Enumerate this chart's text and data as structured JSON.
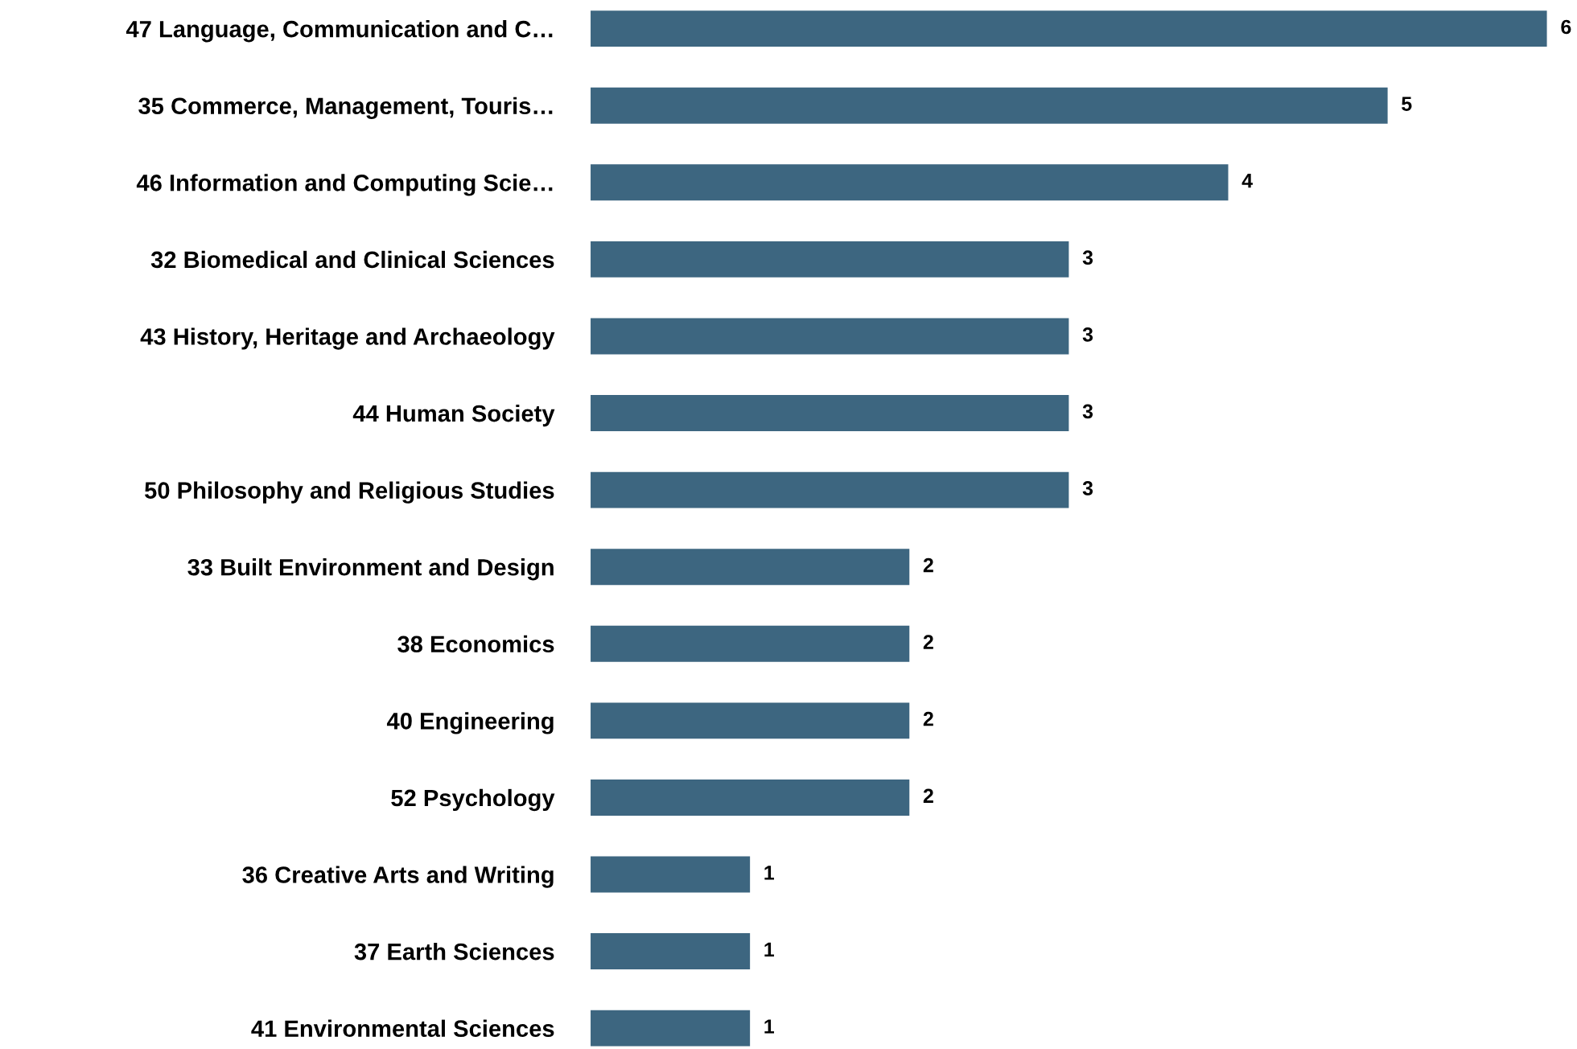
{
  "chart_data": {
    "type": "bar",
    "orientation": "horizontal",
    "data_labels": true,
    "grid": false,
    "legend": false,
    "categories": [
      "47 Language, Communication and C…",
      "35 Commerce, Management, Touris…",
      "46 Information and Computing Scie…",
      "32 Biomedical and Clinical Sciences",
      "43 History, Heritage and Archaeology",
      "44 Human Society",
      "50 Philosophy and Religious Studies",
      "33 Built Environment and Design",
      "38 Economics",
      "40 Engineering",
      "52 Psychology",
      "36 Creative Arts and Writing",
      "37 Earth Sciences",
      "41 Environmental Sciences"
    ],
    "values": [
      6,
      5,
      4,
      3,
      3,
      3,
      3,
      2,
      2,
      2,
      2,
      1,
      1,
      1
    ],
    "color": "#3d6680"
  }
}
